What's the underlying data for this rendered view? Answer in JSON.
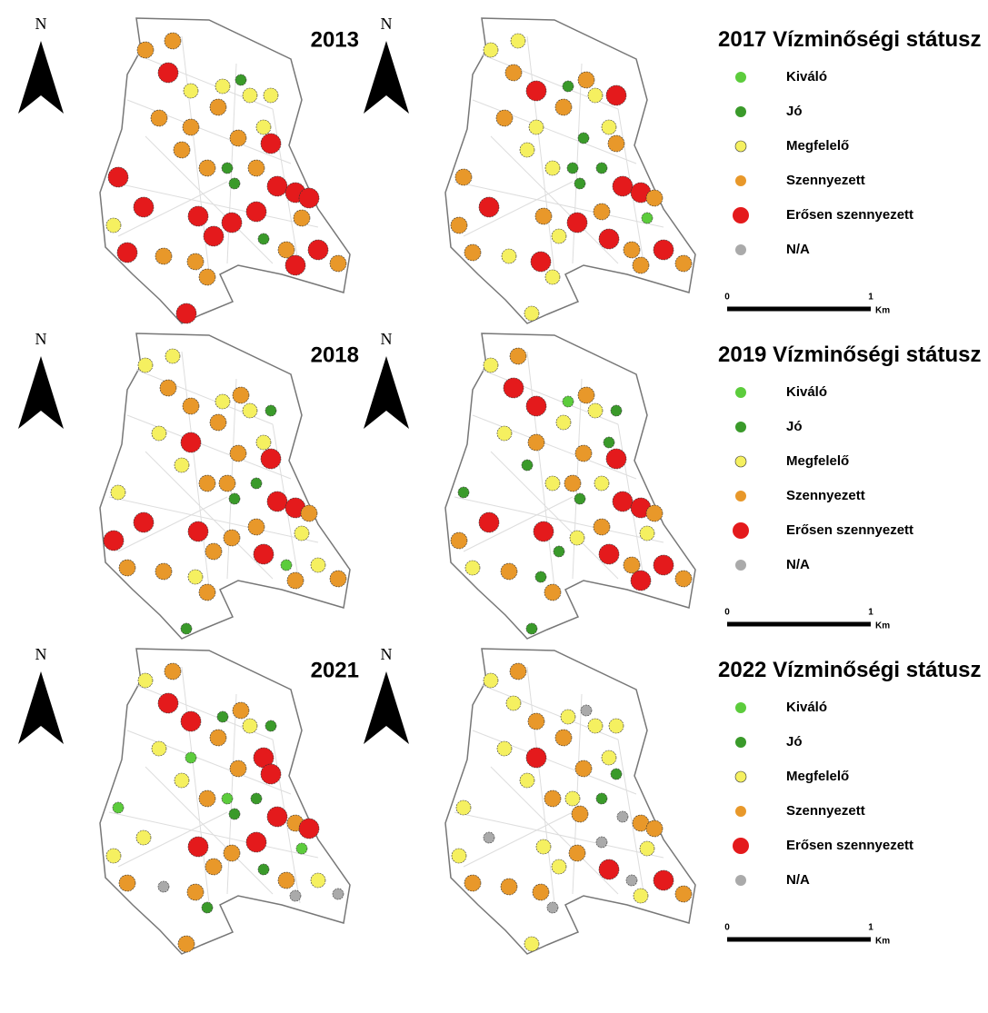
{
  "maps": [
    {
      "year": "2013"
    },
    {
      "year": "2017"
    },
    {
      "year": "2018"
    },
    {
      "year": "2019"
    },
    {
      "year": "2021"
    },
    {
      "year": "2022"
    }
  ],
  "legend": {
    "title": "Vízminőségi státusz",
    "items": [
      {
        "label": "Kiváló",
        "color": "#5ccc3c"
      },
      {
        "label": "Jó",
        "color": "#3a9a2a"
      },
      {
        "label": "Megfelelő",
        "color": "#f5f060"
      },
      {
        "label": "Szennyezett",
        "color": "#e8982a"
      },
      {
        "label": "Erősen szennyezett",
        "color": "#e41a1c"
      },
      {
        "label": "N/A",
        "color": "#aaaaaa"
      }
    ]
  },
  "scale_bar": {
    "start": "0",
    "end": "1",
    "unit": "Km"
  },
  "north_label": "N"
}
